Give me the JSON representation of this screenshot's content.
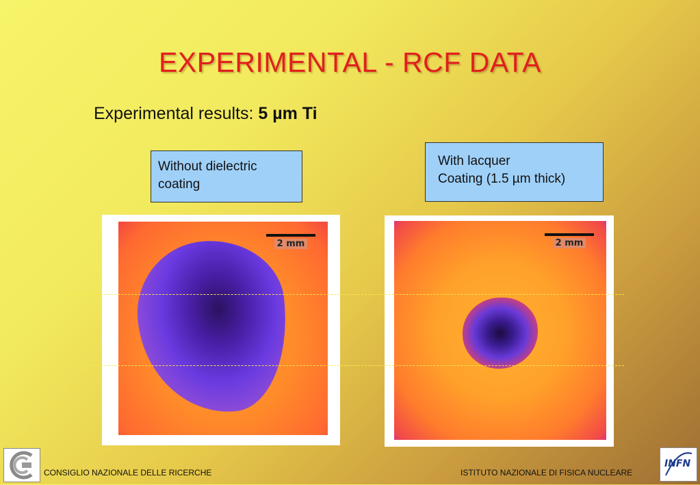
{
  "slide": {
    "title": "EXPERIMENTAL - RCF DATA",
    "subtitle_prefix": "Experimental results: ",
    "subtitle_bold": "5 µm Ti"
  },
  "panels": {
    "left": {
      "label_line1": "Without dielectric",
      "label_line2": "coating",
      "scale_label": "2 mm"
    },
    "right": {
      "label_line1": "With lacquer",
      "label_line2": "Coating (1.5 µm thick)",
      "scale_label": "2 mm"
    }
  },
  "footer": {
    "left_text": "CONSIGLIO NAZIONALE DELLE RICERCHE",
    "right_text": "ISTITUTO NAZIONALE DI FISICA NUCLEARE",
    "right_logo_text": "INFN"
  },
  "colors": {
    "title": "#e0201e",
    "label_box": "#9fd0f8",
    "guide_lines": "#f4e84c"
  }
}
